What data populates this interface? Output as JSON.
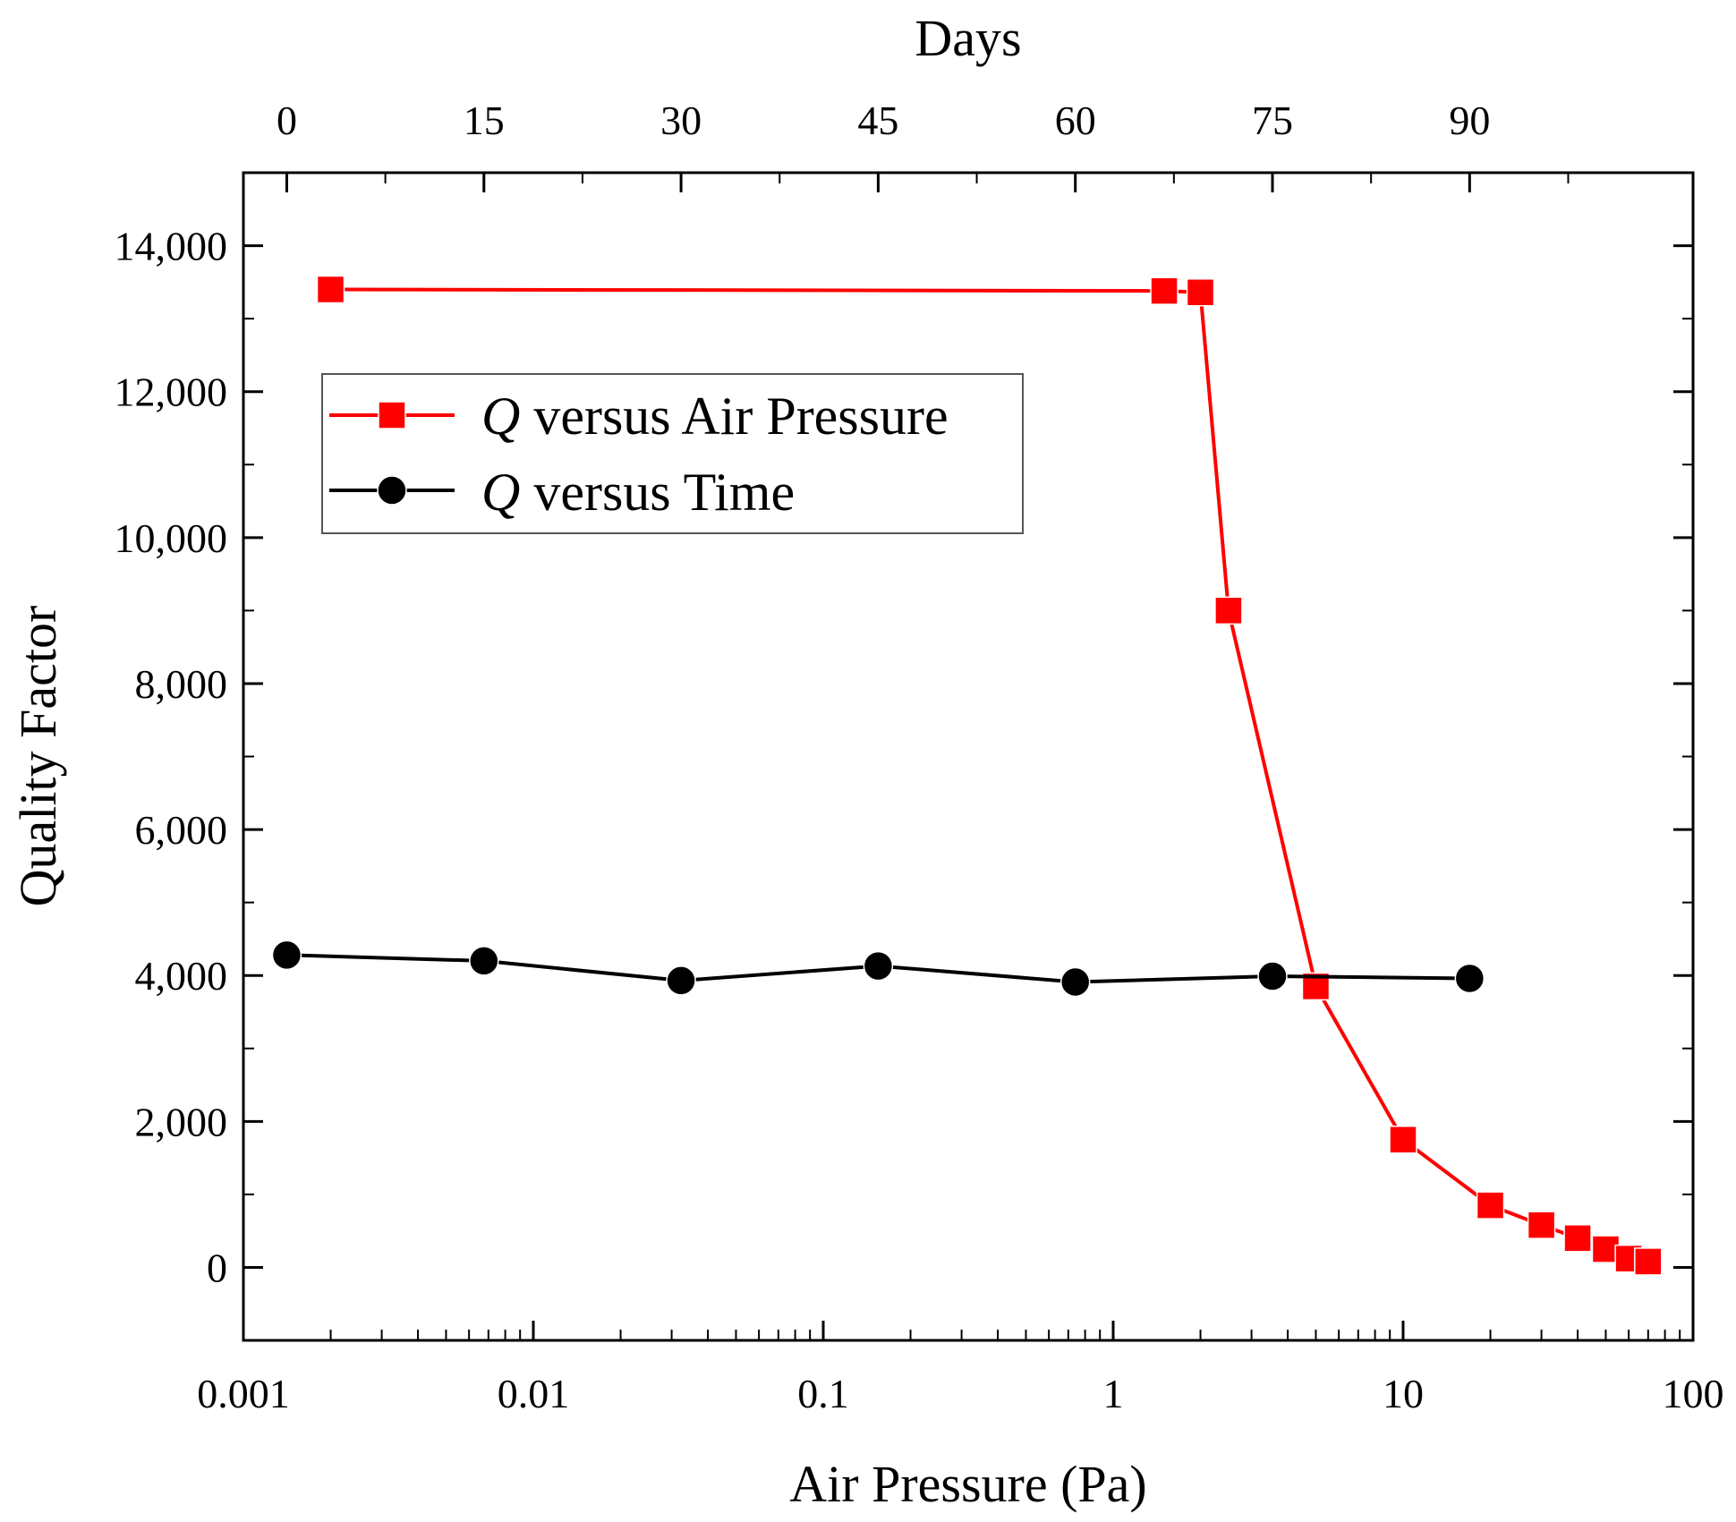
{
  "chart_data": {
    "type": "line",
    "title": "",
    "xlabel": "Air Pressure (Pa)",
    "ylabel": "Quality Factor",
    "x2label": "Days",
    "xscale": "log",
    "xlim": [
      0.001,
      100
    ],
    "ylim": [
      -1000,
      15000
    ],
    "x2lim": [
      -3.3,
      107
    ],
    "xticks": [
      0.001,
      0.01,
      0.1,
      1,
      10,
      100
    ],
    "xtick_labels": [
      "0.001",
      "0.01",
      "0.1",
      "1",
      "10",
      "100"
    ],
    "yticks": [
      0,
      2000,
      4000,
      6000,
      8000,
      10000,
      12000,
      14000
    ],
    "ytick_labels": [
      "0",
      "2,000",
      "4,000",
      "6,000",
      "8,000",
      "10,000",
      "12,000",
      "14,000"
    ],
    "x2ticks": [
      0,
      15,
      30,
      45,
      60,
      75,
      90
    ],
    "x2tick_labels": [
      "0",
      "15",
      "30",
      "45",
      "60",
      "75",
      "90"
    ],
    "grid": false,
    "legend_position": "top-left",
    "series": [
      {
        "name": "versus Air Pressure",
        "legend_symbol": "Q",
        "axis": "bottom",
        "color": "#ff0000",
        "marker": "square",
        "x": [
          0.002,
          1.5,
          2,
          2.5,
          5,
          10,
          20,
          30,
          40,
          50,
          60,
          70
        ],
        "values": [
          13400,
          13380,
          13360,
          9000,
          3850,
          1750,
          850,
          580,
          400,
          250,
          120,
          80
        ]
      },
      {
        "name": "versus Time",
        "legend_symbol": "Q",
        "axis": "top",
        "color": "#000000",
        "marker": "circle",
        "x": [
          0,
          15,
          30,
          45,
          60,
          75,
          90
        ],
        "values": [
          4280,
          4200,
          3930,
          4130,
          3910,
          3990,
          3960
        ]
      }
    ]
  }
}
